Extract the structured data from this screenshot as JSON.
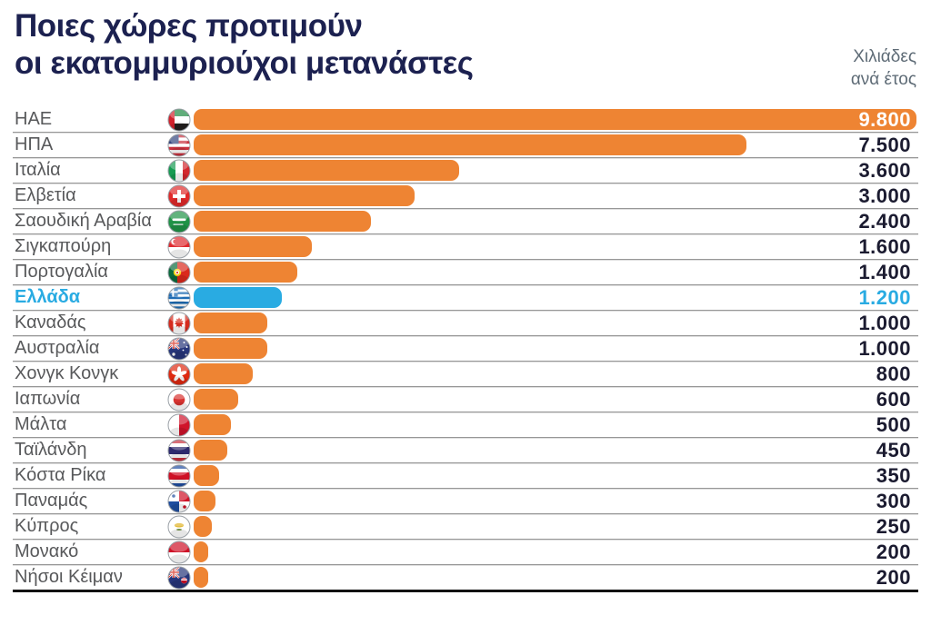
{
  "title": {
    "line1": "Ποιες χώρες προτιμούν",
    "line2": "οι εκατομμυριούχοι μετανάστες"
  },
  "units": {
    "line1": "Χιλιάδες",
    "line2": "ανά έτος"
  },
  "colors": {
    "bar_orange": "#EE8433",
    "bar_highlight_blue": "#29ABE2",
    "title_navy": "#1C2150",
    "value_dark": "#1B1B30",
    "value_white": "#FFFFFF",
    "value_blue": "#29ABE2",
    "label_gray": "#58595B",
    "units_gray": "#5E6B76",
    "separator_gray": "#979797",
    "bottom_rule_black": "#121212"
  },
  "chart_data": {
    "type": "bar",
    "orientation": "horizontal",
    "title": "Ποιες χώρες προτιμούν οι εκατομμυριούχοι μετανάστες",
    "unit_label": "Χιλιάδες ανά έτος",
    "grid": false,
    "legend": false,
    "xlim": [
      0,
      9800
    ],
    "highlight_category": "Ελλάδα",
    "categories": [
      "ΗΑΕ",
      "ΗΠΑ",
      "Ιταλία",
      "Ελβετία",
      "Σαουδική Αραβία",
      "Σιγκαπούρη",
      "Πορτογαλία",
      "Ελλάδα",
      "Καναδάς",
      "Αυστραλία",
      "Χονγκ Κονγκ",
      "Ιαπωνία",
      "Μάλτα",
      "Ταϊλάνδη",
      "Κόστα Ρίκα",
      "Παναμάς",
      "Κύπρος",
      "Μονακό",
      "Νήσοι Κέιμαν"
    ],
    "values": [
      9800,
      7500,
      3600,
      3000,
      2400,
      1600,
      1400,
      1200,
      1000,
      1000,
      800,
      600,
      500,
      450,
      350,
      300,
      250,
      200,
      200
    ],
    "rows": [
      {
        "label": "ΗΑΕ",
        "flag": "uae-flag",
        "value": 9800,
        "display_value": "9.800",
        "accent": "orange",
        "value_style": "white"
      },
      {
        "label": "ΗΠΑ",
        "flag": "usa-flag",
        "value": 7500,
        "display_value": "7.500",
        "accent": "orange",
        "value_style": "dark"
      },
      {
        "label": "Ιταλία",
        "flag": "italy-flag",
        "value": 3600,
        "display_value": "3.600",
        "accent": "orange",
        "value_style": "dark"
      },
      {
        "label": "Ελβετία",
        "flag": "switzerland-flag",
        "value": 3000,
        "display_value": "3.000",
        "accent": "orange",
        "value_style": "dark"
      },
      {
        "label": "Σαουδική Αραβία",
        "flag": "saudi-arabia-flag",
        "value": 2400,
        "display_value": "2.400",
        "accent": "orange",
        "value_style": "dark"
      },
      {
        "label": "Σιγκαπούρη",
        "flag": "singapore-flag",
        "value": 1600,
        "display_value": "1.600",
        "accent": "orange",
        "value_style": "dark"
      },
      {
        "label": "Πορτογαλία",
        "flag": "portugal-flag",
        "value": 1400,
        "display_value": "1.400",
        "accent": "orange",
        "value_style": "dark"
      },
      {
        "label": "Ελλάδα",
        "flag": "greece-flag",
        "value": 1200,
        "display_value": "1.200",
        "accent": "blue",
        "value_style": "blue",
        "highlight": true
      },
      {
        "label": "Καναδάς",
        "flag": "canada-flag",
        "value": 1000,
        "display_value": "1.000",
        "accent": "orange",
        "value_style": "dark"
      },
      {
        "label": "Αυστραλία",
        "flag": "australia-flag",
        "value": 1000,
        "display_value": "1.000",
        "accent": "orange",
        "value_style": "dark"
      },
      {
        "label": "Χονγκ Κονγκ",
        "flag": "hong-kong-flag",
        "value": 800,
        "display_value": "800",
        "accent": "orange",
        "value_style": "dark"
      },
      {
        "label": "Ιαπωνία",
        "flag": "japan-flag",
        "value": 600,
        "display_value": "600",
        "accent": "orange",
        "value_style": "dark"
      },
      {
        "label": "Μάλτα",
        "flag": "malta-flag",
        "value": 500,
        "display_value": "500",
        "accent": "orange",
        "value_style": "dark"
      },
      {
        "label": "Ταϊλάνδη",
        "flag": "thailand-flag",
        "value": 450,
        "display_value": "450",
        "accent": "orange",
        "value_style": "dark"
      },
      {
        "label": "Κόστα Ρίκα",
        "flag": "costa-rica-flag",
        "value": 350,
        "display_value": "350",
        "accent": "orange",
        "value_style": "dark"
      },
      {
        "label": "Παναμάς",
        "flag": "panama-flag",
        "value": 300,
        "display_value": "300",
        "accent": "orange",
        "value_style": "dark"
      },
      {
        "label": "Κύπρος",
        "flag": "cyprus-flag",
        "value": 250,
        "display_value": "250",
        "accent": "orange",
        "value_style": "dark"
      },
      {
        "label": "Μονακό",
        "flag": "monaco-flag",
        "value": 200,
        "display_value": "200",
        "accent": "orange",
        "value_style": "dark"
      },
      {
        "label": "Νήσοι Κέιμαν",
        "flag": "cayman-islands-flag",
        "value": 200,
        "display_value": "200",
        "accent": "orange",
        "value_style": "dark"
      }
    ]
  }
}
